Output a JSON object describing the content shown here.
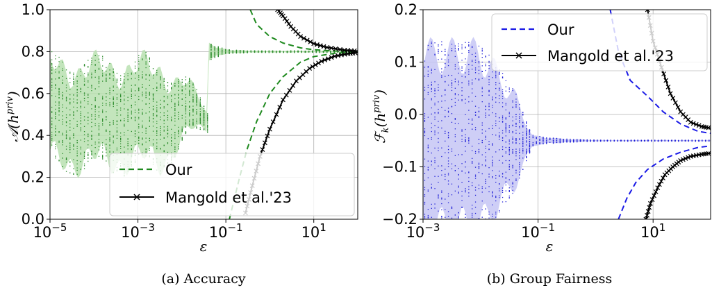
{
  "chart_data": [
    {
      "type": "scatter",
      "caption": "(a) Accuracy",
      "xlabel": "ε",
      "ylabel_base": "𝒜(h",
      "ylabel_sup": "priv",
      "ylabel_close": ")",
      "xscale": "log",
      "xlim": [
        1e-05,
        100
      ],
      "ylim": [
        0,
        1
      ],
      "grid": true,
      "xticks": [
        {
          "v": 1e-05,
          "base": "10",
          "exp": "−5"
        },
        {
          "v": 0.001,
          "base": "10",
          "exp": "−3"
        },
        {
          "v": 0.1,
          "base": "10",
          "exp": "−1"
        },
        {
          "v": 10,
          "base": "10",
          "exp": "1"
        }
      ],
      "yticks": [
        {
          "v": 0.0,
          "label": "0.0"
        },
        {
          "v": 0.2,
          "label": "0.2"
        },
        {
          "v": 0.4,
          "label": "0.4"
        },
        {
          "v": 0.6,
          "label": "0.6"
        },
        {
          "v": 0.8,
          "label": "0.8"
        },
        {
          "v": 1.0,
          "label": "1.0"
        }
      ],
      "center_value": 0.8,
      "empirical_color": "#2a8a2a",
      "band_color": "#b8e0b0",
      "legend_position": "lower-right",
      "series": [
        {
          "name": "Our",
          "style": "dashed",
          "color": "#1f8a1f",
          "upper": [
            [
              0.36,
              1.0
            ],
            [
              0.5,
              0.93
            ],
            [
              1,
              0.872
            ],
            [
              2,
              0.841
            ],
            [
              5,
              0.818
            ],
            [
              10,
              0.809
            ],
            [
              30,
              0.803
            ],
            [
              100,
              0.801
            ]
          ],
          "lower": [
            [
              0.12,
              0.0
            ],
            [
              0.2,
              0.19
            ],
            [
              0.3,
              0.33
            ],
            [
              0.5,
              0.466
            ],
            [
              1,
              0.6
            ],
            [
              2,
              0.68
            ],
            [
              5,
              0.75
            ],
            [
              10,
              0.776
            ],
            [
              30,
              0.792
            ],
            [
              100,
              0.798
            ]
          ]
        },
        {
          "name": "Mangold et al.'23",
          "style": "line-x",
          "color": "#000000",
          "upper": [
            [
              1.5,
              1.0
            ],
            [
              2,
              0.97
            ],
            [
              3,
              0.92
            ],
            [
              5,
              0.872
            ],
            [
              10,
              0.838
            ],
            [
              20,
              0.82
            ],
            [
              50,
              0.807
            ],
            [
              100,
              0.803
            ]
          ],
          "lower": [
            [
              0.28,
              0.03
            ],
            [
              0.4,
              0.16
            ],
            [
              0.6,
              0.3
            ],
            [
              1,
              0.43
            ],
            [
              2,
              0.57
            ],
            [
              4,
              0.66
            ],
            [
              8,
              0.72
            ],
            [
              15,
              0.754
            ],
            [
              30,
              0.778
            ],
            [
              60,
              0.79
            ],
            [
              100,
              0.795
            ]
          ]
        }
      ]
    },
    {
      "type": "scatter",
      "caption": "(b) Group Fairness",
      "xlabel": "ε",
      "ylabel_base": "ℱ",
      "ylabel_sub": "k",
      "ylabel_mid": "(h",
      "ylabel_sup": "priv",
      "ylabel_close": ")",
      "xscale": "log",
      "xlim": [
        0.001,
        100
      ],
      "ylim": [
        -0.2,
        0.2
      ],
      "grid": true,
      "xticks": [
        {
          "v": 0.001,
          "base": "10",
          "exp": "−3"
        },
        {
          "v": 0.1,
          "base": "10",
          "exp": "−1"
        },
        {
          "v": 10,
          "base": "10",
          "exp": "1"
        }
      ],
      "yticks": [
        {
          "v": -0.2,
          "label": "−0.2"
        },
        {
          "v": -0.1,
          "label": "−0.1"
        },
        {
          "v": 0.0,
          "label": "0.0"
        },
        {
          "v": 0.1,
          "label": "0.1"
        },
        {
          "v": 0.2,
          "label": "0.2"
        }
      ],
      "center_value": -0.05,
      "empirical_color": "#1f1fd6",
      "band_color": "#c6c6f5",
      "legend_position": "upper-right",
      "series": [
        {
          "name": "Our",
          "style": "dashed",
          "color": "#1a1ae6",
          "upper": [
            [
              1.8,
              0.2
            ],
            [
              2.5,
              0.12
            ],
            [
              4,
              0.065
            ],
            [
              8,
              0.035
            ],
            [
              15,
              0.005
            ],
            [
              30,
              -0.018
            ],
            [
              60,
              -0.032
            ],
            [
              100,
              -0.036
            ]
          ],
          "lower": [
            [
              2.5,
              -0.2
            ],
            [
              3.5,
              -0.16
            ],
            [
              5,
              -0.13
            ],
            [
              8,
              -0.105
            ],
            [
              15,
              -0.085
            ],
            [
              30,
              -0.072
            ],
            [
              60,
              -0.063
            ],
            [
              100,
              -0.06
            ]
          ]
        },
        {
          "name": "Mangold et al.'23",
          "style": "line-x",
          "color": "#000000",
          "upper": [
            [
              8,
              0.2
            ],
            [
              10,
              0.14
            ],
            [
              14,
              0.09
            ],
            [
              20,
              0.04
            ],
            [
              30,
              0.005
            ],
            [
              45,
              -0.015
            ],
            [
              70,
              -0.023
            ],
            [
              100,
              -0.026
            ]
          ],
          "lower": [
            [
              7.5,
              -0.2
            ],
            [
              9,
              -0.17
            ],
            [
              12,
              -0.14
            ],
            [
              16,
              -0.115
            ],
            [
              22,
              -0.1
            ],
            [
              30,
              -0.088
            ],
            [
              45,
              -0.08
            ],
            [
              70,
              -0.076
            ],
            [
              100,
              -0.074
            ]
          ]
        }
      ]
    }
  ]
}
